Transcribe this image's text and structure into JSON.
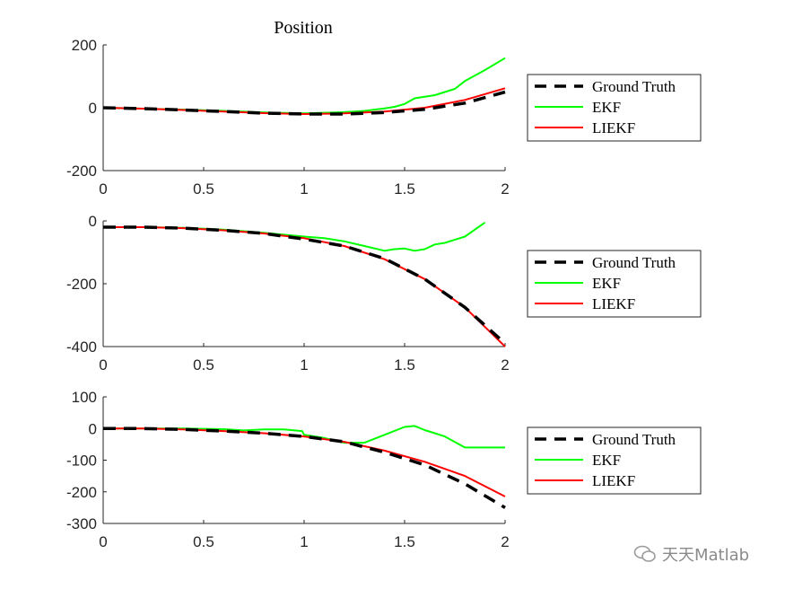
{
  "title": "Position",
  "watermark": "天天Matlab",
  "colors": {
    "ground_truth": "#000000",
    "ekf": "#00ff00",
    "liekf": "#ff0000"
  },
  "chart_data": [
    {
      "type": "line",
      "xlim": [
        0,
        2
      ],
      "ylim": [
        -200,
        200
      ],
      "xticks": [
        0,
        0.5,
        1,
        1.5,
        2
      ],
      "xtick_labels": [
        "0",
        "0.5",
        "1",
        "1.5",
        "2"
      ],
      "yticks": [
        200,
        0,
        -200
      ],
      "ytick_labels": [
        "200",
        "0",
        "-200"
      ],
      "legend": [
        "Ground Truth",
        "EKF",
        "LIEKF"
      ],
      "legend_location": "right-outside",
      "series": [
        {
          "name": "Ground Truth",
          "style": "dashed",
          "x": [
            0,
            0.2,
            0.4,
            0.6,
            0.8,
            1.0,
            1.2,
            1.4,
            1.6,
            1.8,
            2.0
          ],
          "y": [
            0,
            -3,
            -7,
            -12,
            -17,
            -20,
            -20,
            -15,
            -5,
            15,
            50
          ]
        },
        {
          "name": "EKF",
          "style": "solid",
          "x": [
            0,
            0.2,
            0.4,
            0.6,
            0.8,
            1.0,
            1.1,
            1.2,
            1.3,
            1.4,
            1.45,
            1.5,
            1.55,
            1.6,
            1.65,
            1.7,
            1.75,
            1.8,
            1.9,
            2.0
          ],
          "y": [
            0,
            -3,
            -6,
            -10,
            -15,
            -18,
            -16,
            -14,
            -10,
            -2,
            3,
            12,
            30,
            35,
            40,
            50,
            60,
            85,
            120,
            158
          ]
        },
        {
          "name": "LIEKF",
          "style": "solid",
          "x": [
            0,
            0.2,
            0.4,
            0.6,
            0.8,
            1.0,
            1.2,
            1.4,
            1.6,
            1.8,
            2.0
          ],
          "y": [
            0,
            -3,
            -7,
            -12,
            -17,
            -20,
            -18,
            -12,
            0,
            25,
            62
          ]
        }
      ]
    },
    {
      "type": "line",
      "xlim": [
        0,
        2
      ],
      "ylim": [
        -400,
        0
      ],
      "xticks": [
        0,
        0.5,
        1,
        1.5,
        2
      ],
      "xtick_labels": [
        "0",
        "0.5",
        "1",
        "1.5",
        "2"
      ],
      "yticks": [
        0,
        -200,
        -400
      ],
      "ytick_labels": [
        "0",
        "-200",
        "-400"
      ],
      "legend": [
        "Ground Truth",
        "EKF",
        "LIEKF"
      ],
      "legend_location": "right-outside",
      "series": [
        {
          "name": "Ground Truth",
          "style": "dashed",
          "x": [
            0,
            0.2,
            0.4,
            0.6,
            0.8,
            1.0,
            1.2,
            1.4,
            1.6,
            1.8,
            2.0
          ],
          "y": [
            -20,
            -20,
            -23,
            -30,
            -40,
            -58,
            -80,
            -120,
            -185,
            -275,
            -390
          ]
        },
        {
          "name": "EKF",
          "style": "solid",
          "x": [
            0,
            0.2,
            0.4,
            0.6,
            0.8,
            1.0,
            1.1,
            1.2,
            1.3,
            1.4,
            1.45,
            1.5,
            1.55,
            1.6,
            1.65,
            1.7,
            1.8,
            1.9
          ],
          "y": [
            -20,
            -20,
            -22,
            -28,
            -38,
            -50,
            -55,
            -65,
            -80,
            -95,
            -90,
            -88,
            -95,
            -90,
            -75,
            -70,
            -50,
            -5
          ]
        },
        {
          "name": "LIEKF",
          "style": "solid",
          "x": [
            0,
            0.2,
            0.4,
            0.6,
            0.8,
            1.0,
            1.2,
            1.4,
            1.6,
            1.8,
            2.0
          ],
          "y": [
            -20,
            -20,
            -23,
            -30,
            -40,
            -55,
            -80,
            -122,
            -185,
            -275,
            -400
          ]
        }
      ]
    },
    {
      "type": "line",
      "xlim": [
        0,
        2
      ],
      "ylim": [
        -300,
        100
      ],
      "xticks": [
        0,
        0.5,
        1,
        1.5,
        2
      ],
      "xtick_labels": [
        "0",
        "0.5",
        "1",
        "1.5",
        "2"
      ],
      "yticks": [
        100,
        0,
        -100,
        -200,
        -300
      ],
      "ytick_labels": [
        "100",
        "0",
        "-100",
        "-200",
        "-300"
      ],
      "legend": [
        "Ground Truth",
        "EKF",
        "LIEKF"
      ],
      "legend_location": "right-outside",
      "series": [
        {
          "name": "Ground Truth",
          "style": "dashed",
          "x": [
            0,
            0.2,
            0.4,
            0.6,
            0.8,
            1.0,
            1.2,
            1.4,
            1.6,
            1.8,
            2.0
          ],
          "y": [
            0,
            0,
            -3,
            -8,
            -15,
            -25,
            -42,
            -75,
            -115,
            -175,
            -250
          ]
        },
        {
          "name": "EKF",
          "style": "solid",
          "x": [
            0,
            0.2,
            0.4,
            0.6,
            0.7,
            0.8,
            0.9,
            0.99,
            1.0,
            1.1,
            1.2,
            1.3,
            1.4,
            1.5,
            1.55,
            1.6,
            1.65,
            1.7,
            1.8,
            1.9,
            2.0
          ],
          "y": [
            0,
            0,
            0,
            -2,
            -6,
            -3,
            -3,
            -8,
            -20,
            -30,
            -45,
            -45,
            -20,
            5,
            8,
            -5,
            -15,
            -25,
            -60,
            -60,
            -60
          ]
        },
        {
          "name": "LIEKF",
          "style": "solid",
          "x": [
            0,
            0.2,
            0.4,
            0.6,
            0.8,
            1.0,
            1.2,
            1.4,
            1.6,
            1.8,
            2.0
          ],
          "y": [
            0,
            0,
            -3,
            -8,
            -15,
            -25,
            -42,
            -70,
            -105,
            -150,
            -215
          ]
        }
      ]
    }
  ]
}
